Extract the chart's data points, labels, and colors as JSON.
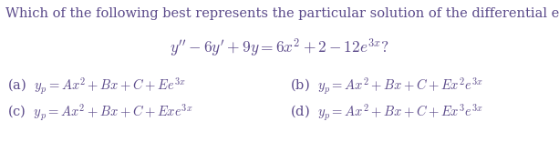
{
  "title": "Which of the following best represents the particular solution of the differential equation:",
  "equation": "$y'' - 6y' + 9y = 6x^2 + 2 - 12e^{3x}?$",
  "options_a": "(a)  $y_p = Ax^2 + Bx + C + Ee^{3x}$",
  "options_b": "(b)  $y_p = Ax^2 + Bx + C + Ex^2e^{3x}$",
  "options_c": "(c)  $y_p = Ax^2 + Bx + C + Exe^{3x}$",
  "options_d": "(d)  $y_p = Ax^2 + Bx + C + Ex^3e^{3x}$",
  "text_color": "#5b4a8a",
  "bg_color": "#ffffff",
  "title_fontsize": 10.5,
  "eq_fontsize": 12.5,
  "option_fontsize": 10.5
}
